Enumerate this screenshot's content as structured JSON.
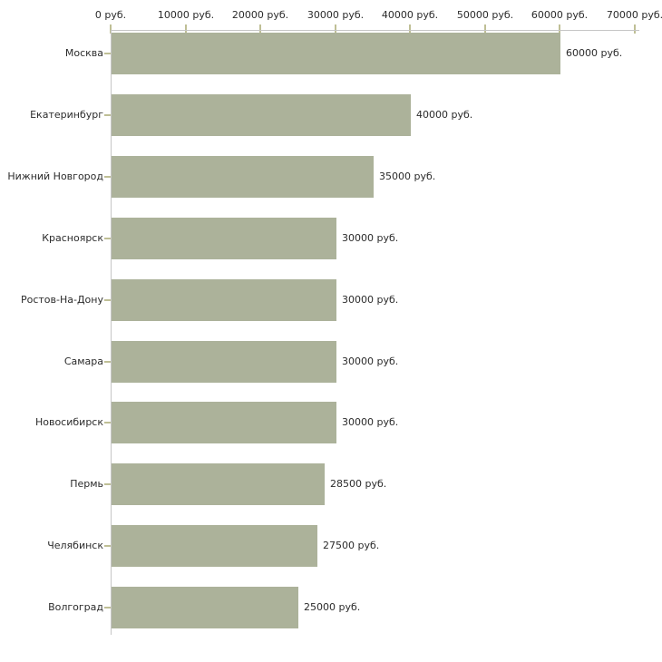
{
  "chart_data": {
    "type": "bar",
    "orientation": "horizontal",
    "title": "",
    "xlabel": "",
    "ylabel": "",
    "unit": "руб.",
    "categories": [
      "Москва",
      "Екатеринбург",
      "Нижний Новгород",
      "Красноярск",
      "Ростов-На-Дону",
      "Самара",
      "Новосибирск",
      "Пермь",
      "Челябинск",
      "Волгоград"
    ],
    "values": [
      60000,
      40000,
      35000,
      30000,
      30000,
      30000,
      30000,
      28500,
      27500,
      25000
    ],
    "value_labels": [
      "60000 руб.",
      "40000 руб.",
      "35000 руб.",
      "30000 руб.",
      "30000 руб.",
      "30000 руб.",
      "30000 руб.",
      "28500 руб.",
      "27500 руб.",
      "25000 руб."
    ],
    "x_ticks": [
      0,
      10000,
      20000,
      30000,
      40000,
      50000,
      60000,
      70000
    ],
    "x_tick_labels": [
      "0 руб.",
      "10000 руб.",
      "20000 руб.",
      "30000 руб.",
      "40000 руб.",
      "50000 руб.",
      "60000 руб.",
      "70000 руб."
    ],
    "xlim": [
      0,
      70000
    ],
    "grid": false,
    "legend": null,
    "colors": {
      "bar_fill": "#acb29a",
      "axis_line": "#c6c6c6",
      "tick_mark": "#bfbf95",
      "text": "#2b2b2b",
      "background": "#ffffff"
    }
  }
}
